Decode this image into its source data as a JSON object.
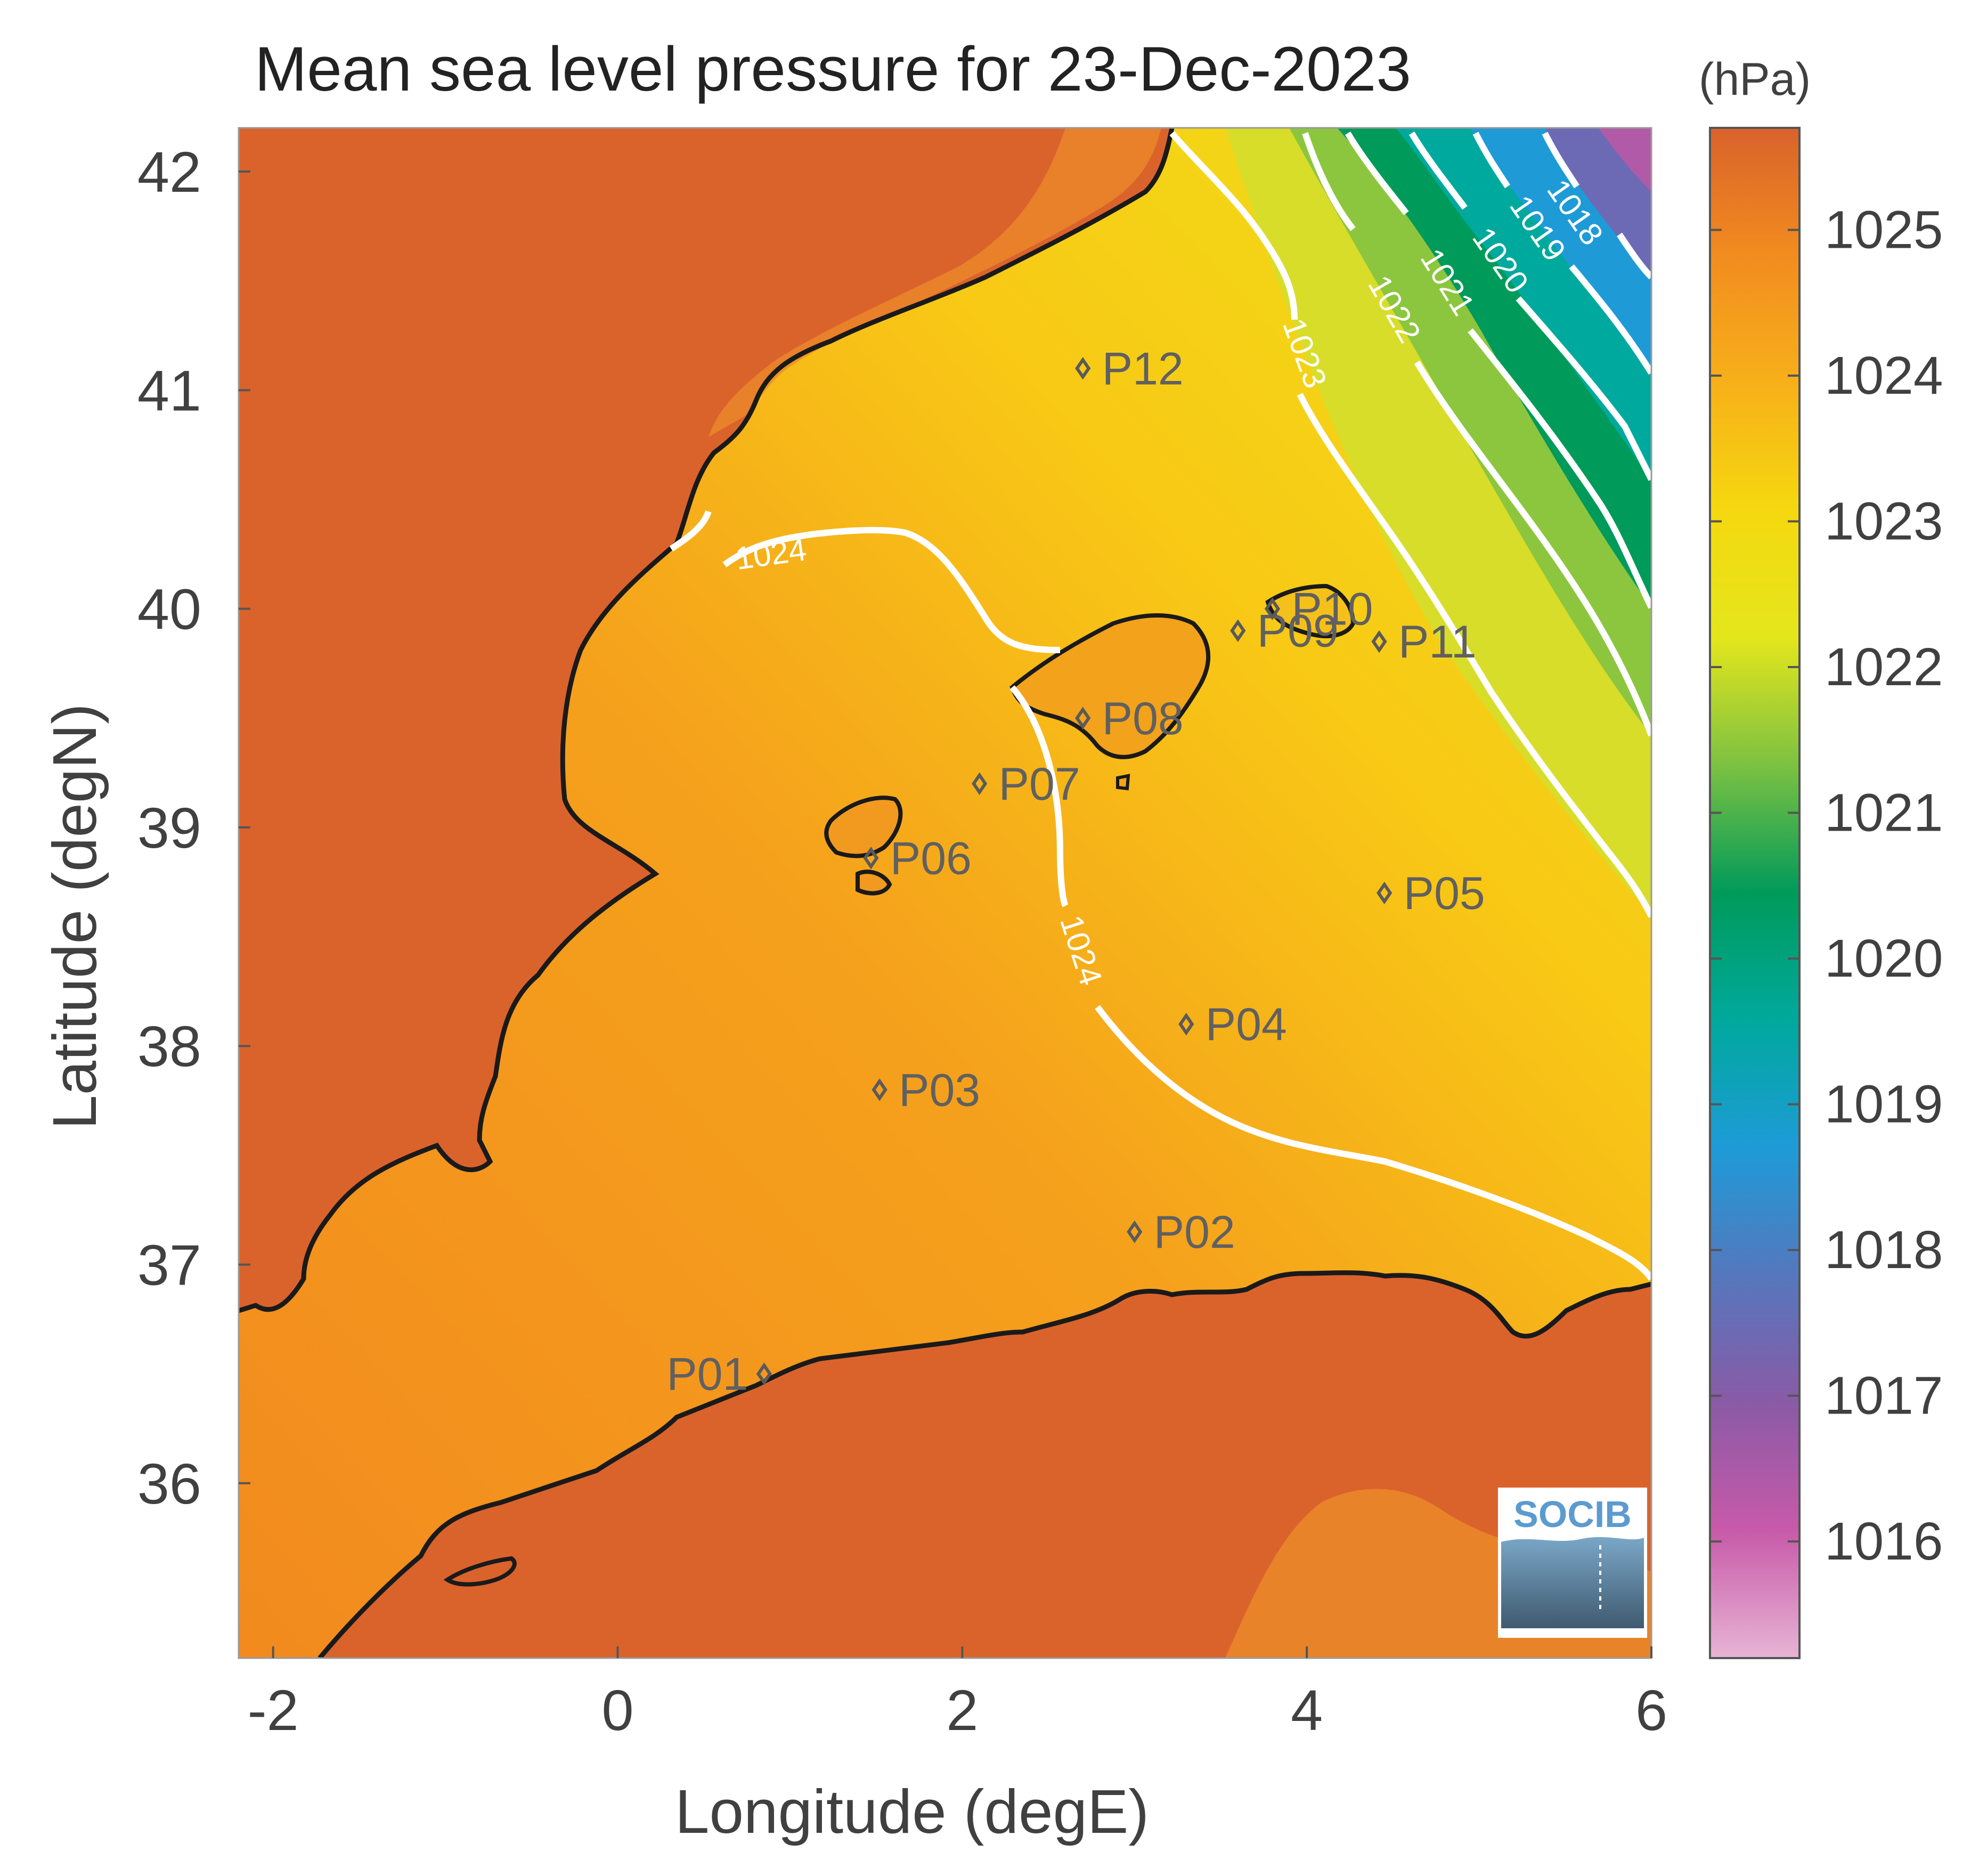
{
  "title": "Mean sea level pressure for 23-Dec-2023",
  "xlabel": "Longitude (degE)",
  "ylabel": "Latitude (degN)",
  "colorbar_unit": "(hPa)",
  "logo_text": "SOCIB",
  "chart_data": {
    "type": "heatmap",
    "title": "Mean sea level pressure for 23-Dec-2023",
    "xlabel": "Longitude (degE)",
    "ylabel": "Latitude (degN)",
    "xlim": [
      -2.2,
      6.0
    ],
    "ylim": [
      35.2,
      42.2
    ],
    "x_ticks": [
      -2,
      0,
      2,
      4,
      6
    ],
    "x_tick_labels": [
      "-2",
      "0",
      "2",
      "4",
      "6"
    ],
    "y_ticks": [
      36,
      37,
      38,
      39,
      40,
      41,
      42
    ],
    "y_tick_labels": [
      "36",
      "37",
      "38",
      "39",
      "40",
      "41",
      "42"
    ],
    "colorbar": {
      "unit": "(hPa)",
      "range": [
        1015.2,
        1025.7
      ],
      "ticks": [
        1016,
        1017,
        1018,
        1019,
        1020,
        1021,
        1022,
        1023,
        1024,
        1025
      ],
      "tick_labels": [
        "1016",
        "1017",
        "1018",
        "1019",
        "1020",
        "1021",
        "1022",
        "1023",
        "1024",
        "1025"
      ],
      "colors": [
        "#e7b4d4",
        "#c85aa9",
        "#8a5aa6",
        "#5577bd",
        "#1e9bd7",
        "#00a99d",
        "#009a5a",
        "#7cc142",
        "#e4e61c",
        "#f5d80f",
        "#f7b01a",
        "#f28c1f",
        "#d9622b"
      ]
    },
    "contours": [
      {
        "level": 1018,
        "label": "1018"
      },
      {
        "level": 1019,
        "label": "1019"
      },
      {
        "level": 1020,
        "label": "1020"
      },
      {
        "level": 1021,
        "label": "1021"
      },
      {
        "level": 1022,
        "label": "1022"
      },
      {
        "level": 1023,
        "label": "1023"
      },
      {
        "level": 1024,
        "label": "1024"
      },
      {
        "level": 1024,
        "label": "1024"
      }
    ],
    "stations": [
      {
        "name": "P01",
        "lon": 0.85,
        "lat": 36.5
      },
      {
        "name": "P02",
        "lon": 3.0,
        "lat": 37.15
      },
      {
        "name": "P03",
        "lon": 1.52,
        "lat": 37.8
      },
      {
        "name": "P04",
        "lon": 3.3,
        "lat": 38.1
      },
      {
        "name": "P05",
        "lon": 4.45,
        "lat": 38.7
      },
      {
        "name": "P06",
        "lon": 1.47,
        "lat": 38.86
      },
      {
        "name": "P07",
        "lon": 2.1,
        "lat": 39.2
      },
      {
        "name": "P08",
        "lon": 2.7,
        "lat": 39.5
      },
      {
        "name": "P09",
        "lon": 3.6,
        "lat": 39.9
      },
      {
        "name": "P10",
        "lon": 3.8,
        "lat": 40.0
      },
      {
        "name": "P11",
        "lon": 4.42,
        "lat": 39.85
      },
      {
        "name": "P12",
        "lon": 2.7,
        "lat": 41.1
      }
    ],
    "grid": false,
    "legend": "colorbar-right"
  }
}
